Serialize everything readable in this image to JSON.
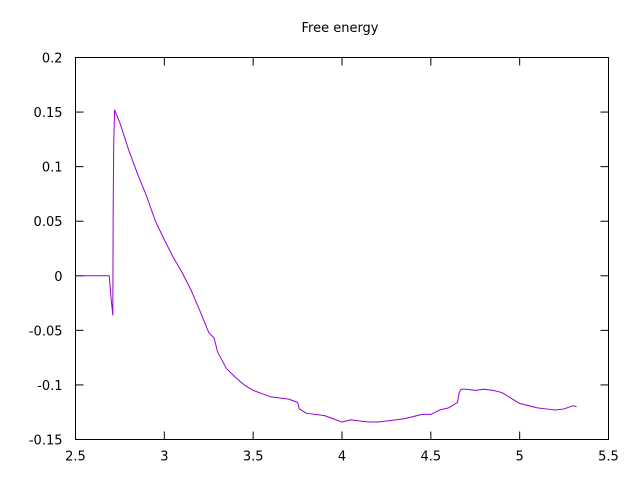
{
  "chart_data": {
    "type": "line",
    "title": "Free energy",
    "xlabel": "",
    "ylabel": "",
    "xlim": [
      2.5,
      5.5
    ],
    "ylim": [
      -0.15,
      0.2
    ],
    "grid": false,
    "legend": "none",
    "xticks": [
      "2.5",
      "3",
      "3.5",
      "4",
      "4.5",
      "5",
      "5.5"
    ],
    "yticks": [
      "0.2",
      "0.15",
      "0.1",
      "0.05",
      "0",
      "-0.05",
      "-0.1",
      "-0.15"
    ],
    "series": [
      {
        "color": "#9400d3",
        "x": [
          2.5,
          2.69,
          2.7,
          2.71,
          2.712,
          2.715,
          2.72,
          2.73,
          2.75,
          2.8,
          2.85,
          2.9,
          2.95,
          3.0,
          3.05,
          3.1,
          3.15,
          3.2,
          3.25,
          3.28,
          3.3,
          3.35,
          3.4,
          3.45,
          3.5,
          3.55,
          3.6,
          3.65,
          3.7,
          3.75,
          3.76,
          3.8,
          3.9,
          3.95,
          4.0,
          4.05,
          4.1,
          4.15,
          4.2,
          4.25,
          4.3,
          4.35,
          4.4,
          4.45,
          4.5,
          4.55,
          4.6,
          4.65,
          4.66,
          4.67,
          4.7,
          4.75,
          4.8,
          4.85,
          4.9,
          4.95,
          5.0,
          5.05,
          5.1,
          5.15,
          5.2,
          5.25,
          5.3,
          5.32
        ],
        "y": [
          0.0,
          0.0,
          -0.02,
          -0.036,
          0.06,
          0.12,
          0.152,
          0.148,
          0.14,
          0.115,
          0.093,
          0.073,
          0.05,
          0.033,
          0.017,
          0.003,
          -0.013,
          -0.032,
          -0.052,
          -0.057,
          -0.07,
          -0.085,
          -0.093,
          -0.1,
          -0.105,
          -0.108,
          -0.111,
          -0.112,
          -0.113,
          -0.116,
          -0.122,
          -0.126,
          -0.128,
          -0.131,
          -0.134,
          -0.132,
          -0.133,
          -0.134,
          -0.134,
          -0.133,
          -0.132,
          -0.131,
          -0.129,
          -0.127,
          -0.127,
          -0.123,
          -0.121,
          -0.116,
          -0.107,
          -0.104,
          -0.104,
          -0.105,
          -0.104,
          -0.105,
          -0.107,
          -0.112,
          -0.117,
          -0.119,
          -0.121,
          -0.122,
          -0.123,
          -0.122,
          -0.119,
          -0.12
        ]
      }
    ]
  }
}
